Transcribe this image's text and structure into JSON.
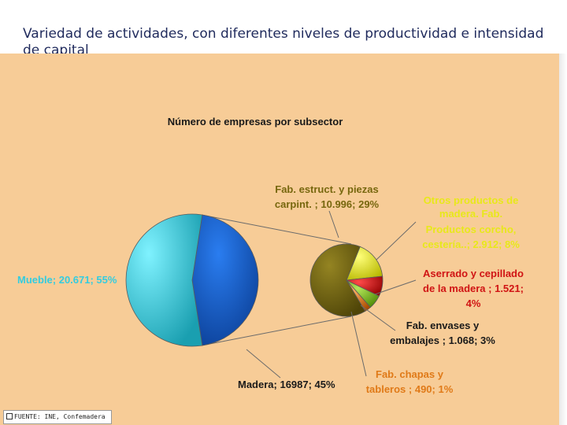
{
  "slide": {
    "title": "Variedad de actividades, con diferentes niveles de productividad e intensidad de capital"
  },
  "source": "FUENTE: INE, Confemadera",
  "chart_data": [
    {
      "type": "pie",
      "title": "Número de empresas por subsector",
      "slices": [
        {
          "label": "Mueble; 20.671; 55%",
          "value": 20671,
          "percent": 55,
          "color": "#33cce0"
        },
        {
          "label": "Madera; 16987; 45%",
          "value": 16987,
          "percent": 45,
          "color": "#1560cc"
        }
      ]
    },
    {
      "type": "pie",
      "title": "",
      "slices": [
        {
          "label": "Fab. estruct. y piezas carpint. ; 10.996; 29%",
          "value": 10996,
          "percent": 29,
          "color": "#77670e"
        },
        {
          "label": "Otros productos de madera. Fab. Productos corcho, cestería..; 2.912; 8%",
          "value": 2912,
          "percent": 8,
          "color": "#e8e81a"
        },
        {
          "label": "Aserrado y cepillado de la madera ; 1.521; 4%",
          "value": 1521,
          "percent": 4,
          "color": "#d01414"
        },
        {
          "label": "Fab. envases y embalajes ; 1.068; 3%",
          "value": 1068,
          "percent": 3,
          "color": "#7ab81c"
        },
        {
          "label": "Fab. chapas y tableros ; 490; 1%",
          "value": 490,
          "percent": 1,
          "color": "#e07a18"
        }
      ]
    }
  ]
}
